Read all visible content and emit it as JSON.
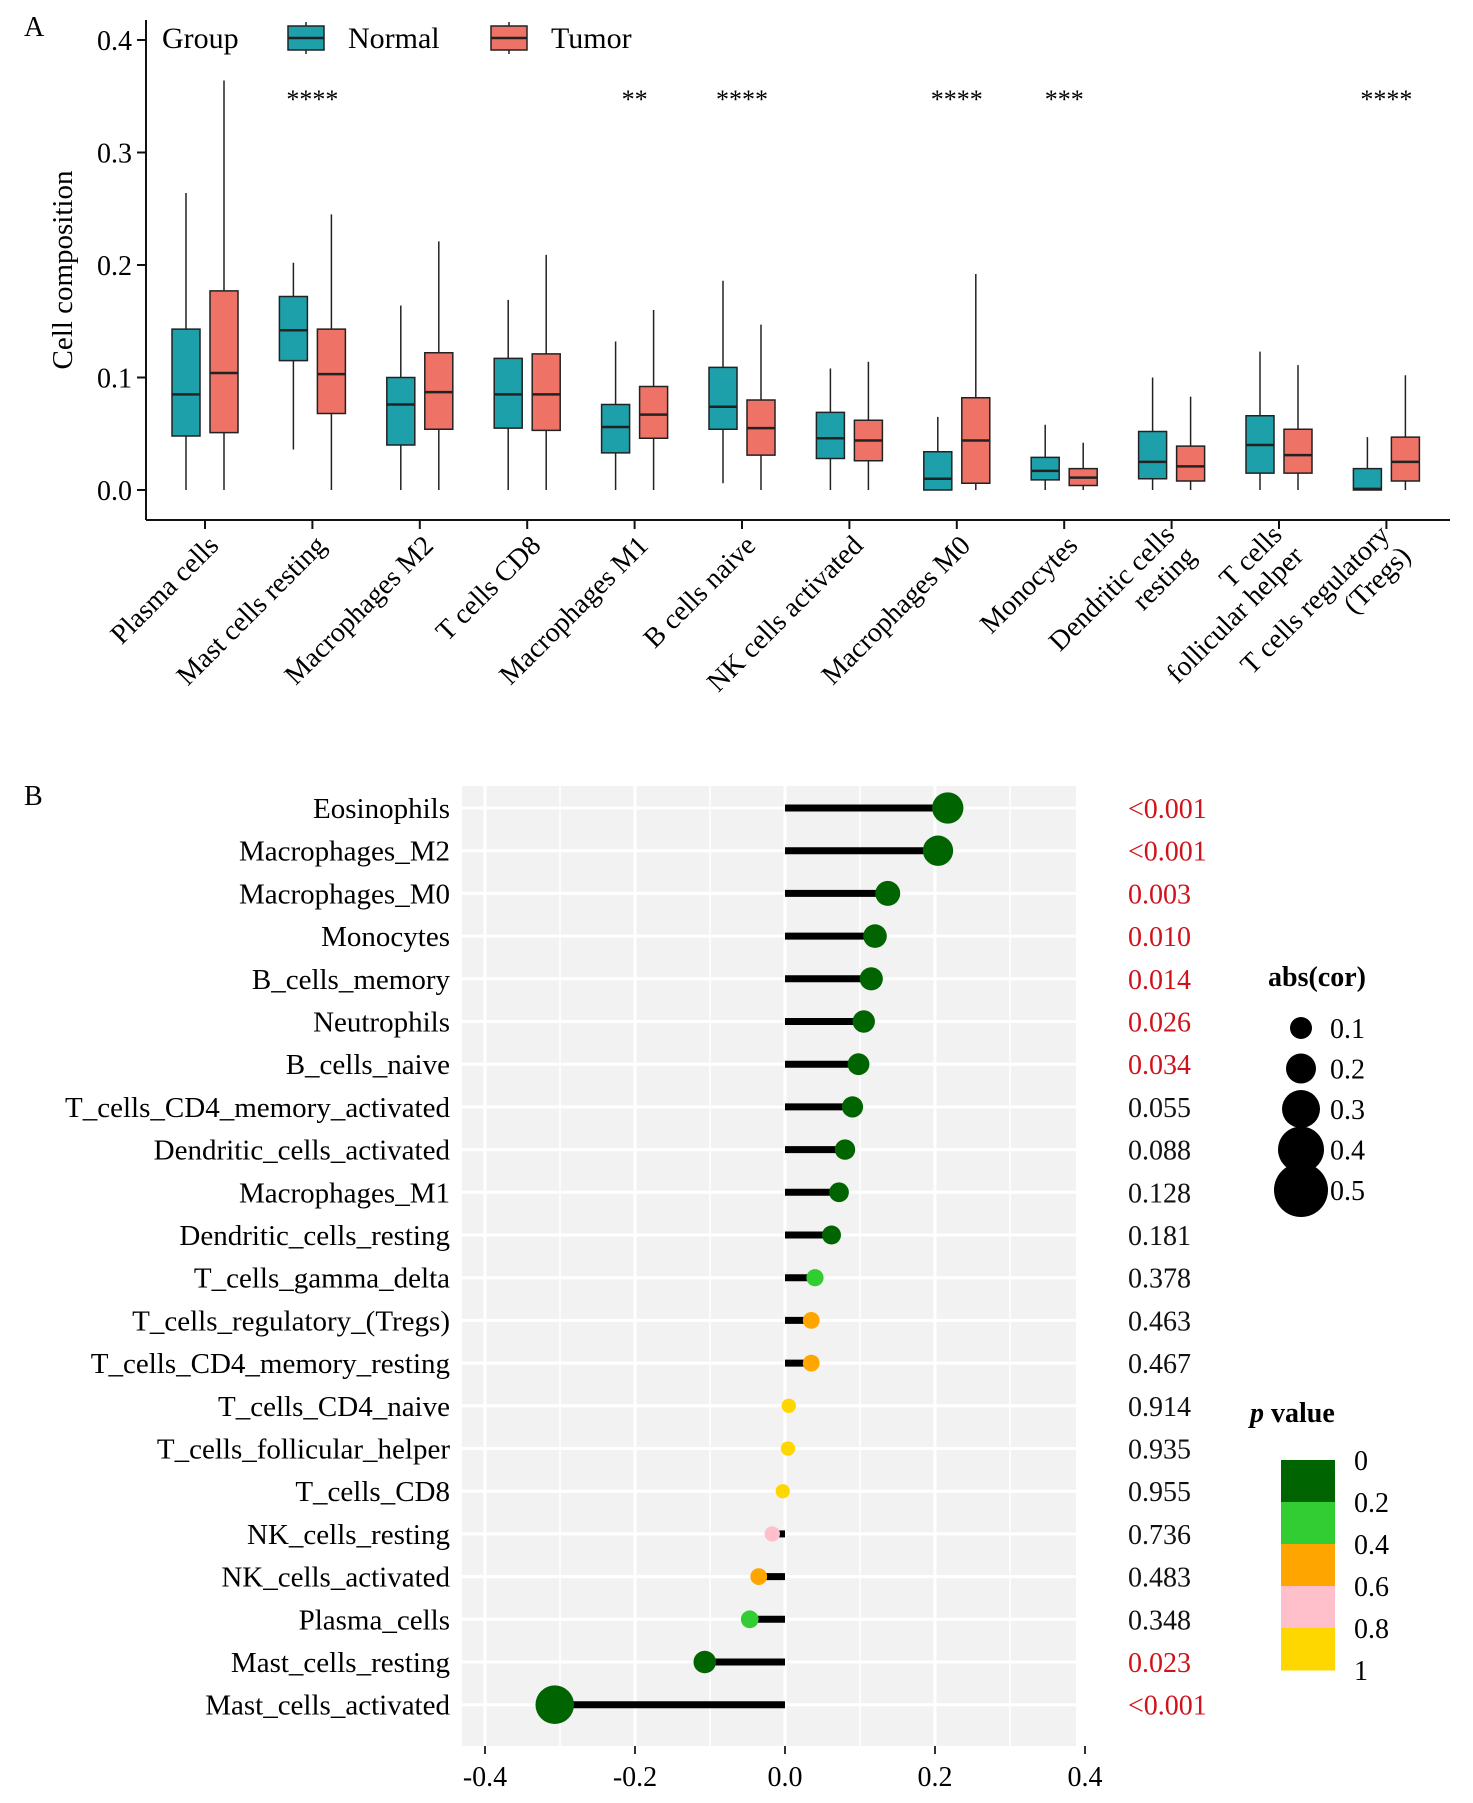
{
  "chart_data": [
    {
      "panel": "A",
      "type": "boxplot",
      "ylabel": "Cell composition",
      "ylim": [
        0,
        0.4
      ],
      "yticks": [
        "0.0",
        "0.1",
        "0.2",
        "0.3",
        "0.4"
      ],
      "legend": {
        "title": "Group",
        "items": [
          {
            "name": "Normal",
            "color": "#1EA0AA"
          },
          {
            "name": "Tumor",
            "color": "#EE7266"
          }
        ]
      },
      "categories": [
        {
          "label": [
            "Plasma cells"
          ],
          "sig": "",
          "normal": {
            "min": 0.0,
            "q1": 0.048,
            "median": 0.085,
            "q3": 0.143,
            "max": 0.264
          },
          "tumor": {
            "min": 0.0,
            "q1": 0.051,
            "median": 0.104,
            "q3": 0.177,
            "max": 0.364
          }
        },
        {
          "label": [
            "Mast cells resting"
          ],
          "sig": "****",
          "normal": {
            "min": 0.036,
            "q1": 0.115,
            "median": 0.142,
            "q3": 0.172,
            "max": 0.202
          },
          "tumor": {
            "min": 0.0,
            "q1": 0.068,
            "median": 0.103,
            "q3": 0.143,
            "max": 0.245
          }
        },
        {
          "label": [
            "Macrophages M2"
          ],
          "sig": "",
          "normal": {
            "min": 0.0,
            "q1": 0.04,
            "median": 0.076,
            "q3": 0.1,
            "max": 0.164
          },
          "tumor": {
            "min": 0.0,
            "q1": 0.054,
            "median": 0.087,
            "q3": 0.122,
            "max": 0.221
          }
        },
        {
          "label": [
            "T cells CD8"
          ],
          "sig": "",
          "normal": {
            "min": 0.0,
            "q1": 0.055,
            "median": 0.085,
            "q3": 0.117,
            "max": 0.169
          },
          "tumor": {
            "min": 0.0,
            "q1": 0.053,
            "median": 0.085,
            "q3": 0.121,
            "max": 0.209
          }
        },
        {
          "label": [
            "Macrophages M1"
          ],
          "sig": "**",
          "normal": {
            "min": 0.0,
            "q1": 0.033,
            "median": 0.056,
            "q3": 0.076,
            "max": 0.132
          },
          "tumor": {
            "min": 0.0,
            "q1": 0.046,
            "median": 0.067,
            "q3": 0.092,
            "max": 0.16
          }
        },
        {
          "label": [
            "B cells naive"
          ],
          "sig": "****",
          "normal": {
            "min": 0.006,
            "q1": 0.054,
            "median": 0.074,
            "q3": 0.109,
            "max": 0.186
          },
          "tumor": {
            "min": 0.0,
            "q1": 0.031,
            "median": 0.055,
            "q3": 0.08,
            "max": 0.147
          }
        },
        {
          "label": [
            "NK cells activated"
          ],
          "sig": "",
          "normal": {
            "min": 0.0,
            "q1": 0.028,
            "median": 0.046,
            "q3": 0.069,
            "max": 0.108
          },
          "tumor": {
            "min": 0.0,
            "q1": 0.026,
            "median": 0.044,
            "q3": 0.062,
            "max": 0.114
          }
        },
        {
          "label": [
            "Macrophages M0"
          ],
          "sig": "****",
          "normal": {
            "min": 0.0,
            "q1": 0.0,
            "median": 0.01,
            "q3": 0.034,
            "max": 0.065
          },
          "tumor": {
            "min": 0.0,
            "q1": 0.006,
            "median": 0.044,
            "q3": 0.082,
            "max": 0.192
          }
        },
        {
          "label": [
            "Monocytes"
          ],
          "sig": "***",
          "normal": {
            "min": 0.0,
            "q1": 0.009,
            "median": 0.017,
            "q3": 0.029,
            "max": 0.058
          },
          "tumor": {
            "min": 0.0,
            "q1": 0.004,
            "median": 0.011,
            "q3": 0.019,
            "max": 0.042
          }
        },
        {
          "label": [
            "Dendritic cells",
            "resting"
          ],
          "sig": "",
          "normal": {
            "min": 0.0,
            "q1": 0.01,
            "median": 0.025,
            "q3": 0.052,
            "max": 0.1
          },
          "tumor": {
            "min": 0.0,
            "q1": 0.008,
            "median": 0.021,
            "q3": 0.039,
            "max": 0.083
          }
        },
        {
          "label": [
            "T cells",
            "follicular helper"
          ],
          "sig": "",
          "normal": {
            "min": 0.0,
            "q1": 0.015,
            "median": 0.04,
            "q3": 0.066,
            "max": 0.123
          },
          "tumor": {
            "min": 0.0,
            "q1": 0.015,
            "median": 0.031,
            "q3": 0.054,
            "max": 0.111
          }
        },
        {
          "label": [
            "T cells regulatory",
            "(Tregs)"
          ],
          "sig": "****",
          "normal": {
            "min": 0.0,
            "q1": 0.0,
            "median": 0.001,
            "q3": 0.019,
            "max": 0.047
          },
          "tumor": {
            "min": 0.0,
            "q1": 0.008,
            "median": 0.025,
            "q3": 0.047,
            "max": 0.102
          }
        }
      ]
    },
    {
      "panel": "B",
      "type": "lollipop",
      "xlim": [
        -0.4,
        0.4
      ],
      "xticks": [
        "-0.4",
        "-0.2",
        "0.0",
        "0.2",
        "0.4"
      ],
      "legend_size": {
        "title": "abs(cor)",
        "values": [
          "0.1",
          "0.2",
          "0.3",
          "0.4",
          "0.5"
        ]
      },
      "legend_color": {
        "title_italic": "p",
        "title_rest": " value",
        "labels": [
          "0",
          "0.2",
          "0.4",
          "0.6",
          "0.8",
          "1"
        ],
        "colors": [
          "#006400",
          "#32CD32",
          "#FFA500",
          "#FFC0CB",
          "#FFD700"
        ]
      },
      "rows": [
        {
          "label": "Eosinophils",
          "cor": 0.217,
          "p_label": "<0.001",
          "sig": true,
          "color": "#006400"
        },
        {
          "label": "Macrophages_M2",
          "cor": 0.204,
          "p_label": "<0.001",
          "sig": true,
          "color": "#006400"
        },
        {
          "label": "Macrophages_M0",
          "cor": 0.137,
          "p_label": "0.003",
          "sig": true,
          "color": "#006400"
        },
        {
          "label": "Monocytes",
          "cor": 0.12,
          "p_label": "0.010",
          "sig": true,
          "color": "#006400"
        },
        {
          "label": "B_cells_memory",
          "cor": 0.115,
          "p_label": "0.014",
          "sig": true,
          "color": "#006400"
        },
        {
          "label": "Neutrophils",
          "cor": 0.105,
          "p_label": "0.026",
          "sig": true,
          "color": "#006400"
        },
        {
          "label": "B_cells_naive",
          "cor": 0.098,
          "p_label": "0.034",
          "sig": true,
          "color": "#006400"
        },
        {
          "label": "T_cells_CD4_memory_activated",
          "cor": 0.09,
          "p_label": "0.055",
          "sig": false,
          "color": "#006400"
        },
        {
          "label": "Dendritic_cells_activated",
          "cor": 0.08,
          "p_label": "0.088",
          "sig": false,
          "color": "#006400"
        },
        {
          "label": "Macrophages_M1",
          "cor": 0.072,
          "p_label": "0.128",
          "sig": false,
          "color": "#006400"
        },
        {
          "label": "Dendritic_cells_resting",
          "cor": 0.062,
          "p_label": "0.181",
          "sig": false,
          "color": "#006400"
        },
        {
          "label": "T_cells_gamma_delta",
          "cor": 0.04,
          "p_label": "0.378",
          "sig": false,
          "color": "#32CD32"
        },
        {
          "label": "T_cells_regulatory_(Tregs)",
          "cor": 0.035,
          "p_label": "0.463",
          "sig": false,
          "color": "#FFA500"
        },
        {
          "label": "T_cells_CD4_memory_resting",
          "cor": 0.035,
          "p_label": "0.467",
          "sig": false,
          "color": "#FFA500"
        },
        {
          "label": "T_cells_CD4_naive",
          "cor": 0.005,
          "p_label": "0.914",
          "sig": false,
          "color": "#FFD700"
        },
        {
          "label": "T_cells_follicular_helper",
          "cor": 0.004,
          "p_label": "0.935",
          "sig": false,
          "color": "#FFD700"
        },
        {
          "label": "T_cells_CD8",
          "cor": -0.003,
          "p_label": "0.955",
          "sig": false,
          "color": "#FFD700"
        },
        {
          "label": "NK_cells_resting",
          "cor": -0.017,
          "p_label": "0.736",
          "sig": false,
          "color": "#FFC0CB"
        },
        {
          "label": "NK_cells_activated",
          "cor": -0.035,
          "p_label": "0.483",
          "sig": false,
          "color": "#FFA500"
        },
        {
          "label": "Plasma_cells",
          "cor": -0.047,
          "p_label": "0.348",
          "sig": false,
          "color": "#32CD32"
        },
        {
          "label": "Mast_cells_resting",
          "cor": -0.107,
          "p_label": "0.023",
          "sig": true,
          "color": "#006400"
        },
        {
          "label": "Mast_cells_activated",
          "cor": -0.307,
          "p_label": "<0.001",
          "sig": true,
          "color": "#006400"
        }
      ]
    }
  ],
  "panel_labels": {
    "a": "A",
    "b": "B"
  }
}
